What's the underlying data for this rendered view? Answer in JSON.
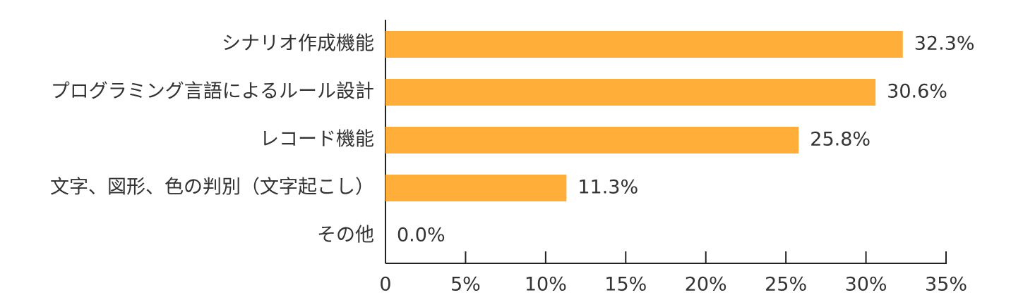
{
  "chart_data": {
    "type": "hbar",
    "categories": [
      "シナリオ作成機能",
      "プログラミング言語によるルール設計",
      "レコード機能",
      "文字、図形、色の判別（文字起こし）",
      "その他"
    ],
    "values": [
      32.3,
      30.6,
      25.8,
      11.3,
      0.0
    ],
    "value_labels": [
      "32.3%",
      "30.6%",
      "25.8%",
      "11.3%",
      "0.0%"
    ],
    "color": "#ffae3a",
    "xlim": [
      0,
      35
    ],
    "xticks": [
      0,
      {
        "value": 5,
        "label": "5%"
      },
      {
        "value": 10,
        "label": "10%"
      },
      {
        "value": 15,
        "label": "15%"
      },
      {
        "value": 20,
        "label": "20%"
      },
      {
        "value": 25,
        "label": "25%"
      },
      {
        "value": 30,
        "label": "30%"
      },
      {
        "value": 35,
        "label": "35%"
      }
    ],
    "grid": false
  }
}
